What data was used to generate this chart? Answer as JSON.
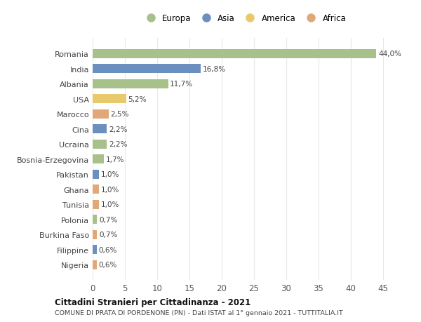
{
  "categories": [
    "Romania",
    "India",
    "Albania",
    "USA",
    "Marocco",
    "Cina",
    "Ucraina",
    "Bosnia-Erzegovina",
    "Pakistan",
    "Ghana",
    "Tunisia",
    "Polonia",
    "Burkina Faso",
    "Filippine",
    "Nigeria"
  ],
  "values": [
    44.0,
    16.8,
    11.7,
    5.2,
    2.5,
    2.2,
    2.2,
    1.7,
    1.0,
    1.0,
    1.0,
    0.7,
    0.7,
    0.6,
    0.6
  ],
  "labels": [
    "44,0%",
    "16,8%",
    "11,7%",
    "5,2%",
    "2,5%",
    "2,2%",
    "2,2%",
    "1,7%",
    "1,0%",
    "1,0%",
    "1,0%",
    "0,7%",
    "0,7%",
    "0,6%",
    "0,6%"
  ],
  "continents": [
    "Europa",
    "Asia",
    "Europa",
    "America",
    "Africa",
    "Asia",
    "Europa",
    "Europa",
    "Asia",
    "Africa",
    "Africa",
    "Europa",
    "Africa",
    "Asia",
    "Africa"
  ],
  "colors": {
    "Europa": "#a8c08a",
    "Asia": "#6b8fbf",
    "America": "#e8c96b",
    "Africa": "#e0a878"
  },
  "legend_order": [
    "Europa",
    "Asia",
    "America",
    "Africa"
  ],
  "title": "Cittadini Stranieri per Cittadinanza - 2021",
  "subtitle": "COMUNE DI PRATA DI PORDENONE (PN) - Dati ISTAT al 1° gennaio 2021 - TUTTITALIA.IT",
  "xlim": [
    0,
    47
  ],
  "xticks": [
    0,
    5,
    10,
    15,
    20,
    25,
    30,
    35,
    40,
    45
  ],
  "background_color": "#ffffff",
  "grid_color": "#e8e8e8",
  "bar_height": 0.6
}
